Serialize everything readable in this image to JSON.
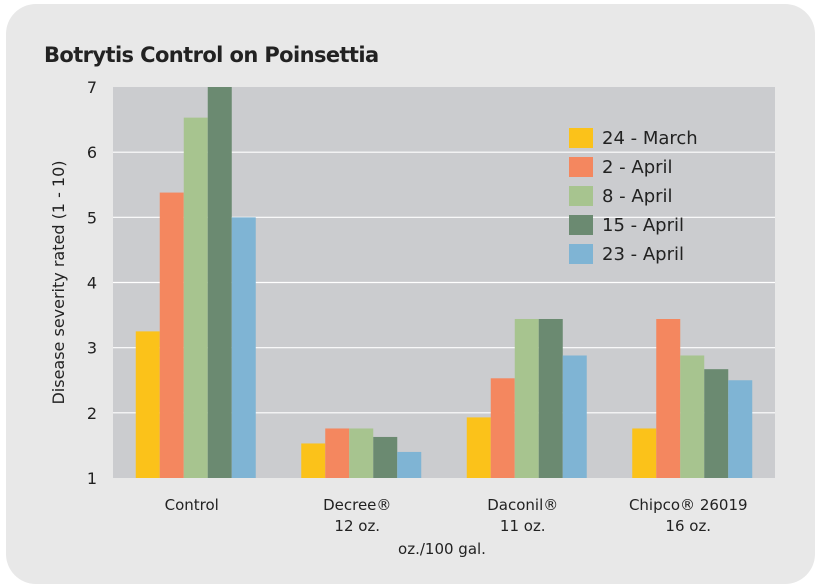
{
  "chart_data": {
    "type": "bar",
    "title": "Botrytis Control on Poinsettia",
    "ylabel": "Disease severity rated (1 - 10)",
    "xlabel": "oz./100 gal.",
    "ylim": [
      1,
      7
    ],
    "yticks": [
      1,
      2,
      3,
      4,
      5,
      6,
      7
    ],
    "grid": true,
    "legend_position": "top-right",
    "categories": [
      {
        "name": "Control",
        "sub": ""
      },
      {
        "name": "Decree®",
        "sub": "12 oz."
      },
      {
        "name": "Daconil®",
        "sub": "11 oz."
      },
      {
        "name": "Chipco® 26019",
        "sub": "16 oz."
      }
    ],
    "series": [
      {
        "name": "24 - March",
        "color": "#fbc21a",
        "values": [
          3.25,
          1.53,
          1.93,
          1.76
        ]
      },
      {
        "name": "2 - April",
        "color": "#f4875f",
        "values": [
          5.38,
          1.76,
          2.53,
          3.44
        ]
      },
      {
        "name": "8 - April",
        "color": "#a7c48f",
        "values": [
          6.53,
          1.76,
          3.44,
          2.88
        ]
      },
      {
        "name": "15 - April",
        "color": "#6b8a71",
        "values": [
          7.0,
          1.63,
          3.44,
          2.67
        ]
      },
      {
        "name": "23 - April",
        "color": "#7fb4d4",
        "values": [
          5.0,
          1.4,
          2.88,
          2.5
        ]
      }
    ],
    "colors": {
      "panel_bg": "#e8e8e8",
      "plot_bg": "#cbcccf",
      "grid": "#ffffff",
      "text": "#222222"
    }
  }
}
